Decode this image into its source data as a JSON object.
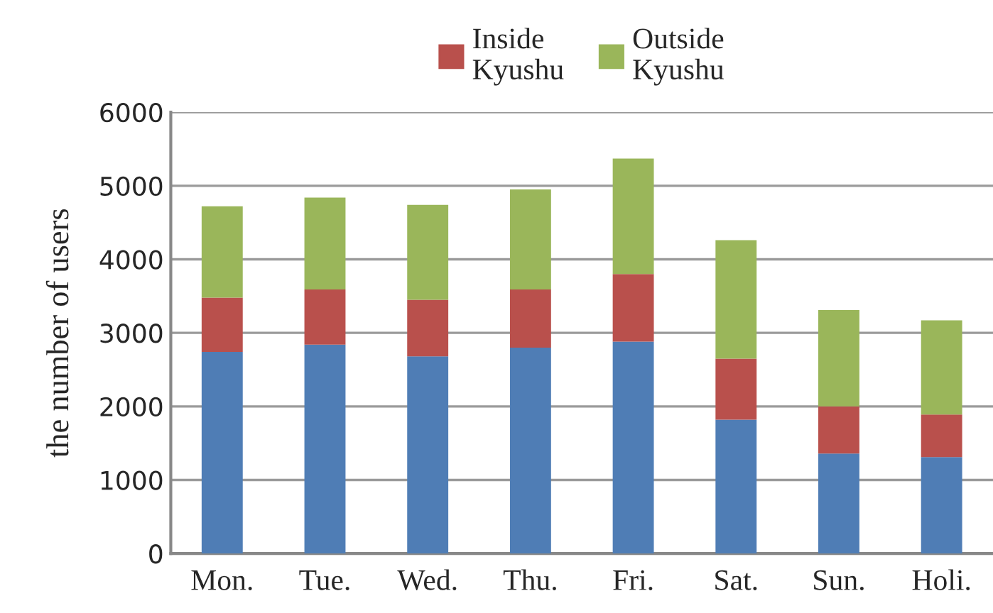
{
  "chart_data": {
    "type": "bar",
    "stacked": true,
    "ylabel": "the number of users",
    "categories": [
      "Mon.",
      "Tue.",
      "Wed.",
      "Thu.",
      "Fri.",
      "Sat.",
      "Sun.",
      "Holi."
    ],
    "series": [
      {
        "color": "#4f7db5",
        "values": [
          2740,
          2840,
          2680,
          2800,
          2880,
          1820,
          1360,
          1310
        ]
      },
      {
        "name": "Inside\nKyushu",
        "color": "#b9504c",
        "values": [
          740,
          750,
          770,
          790,
          920,
          830,
          640,
          580
        ]
      },
      {
        "name": "Outside\nKyushu",
        "color": "#9ab65a",
        "values": [
          1240,
          1250,
          1290,
          1360,
          1570,
          1610,
          1310,
          1280
        ]
      }
    ],
    "ylim": [
      0,
      6000
    ],
    "yticks": [
      0,
      1000,
      2000,
      3000,
      4000,
      5000,
      6000
    ],
    "grid": "y",
    "legend": "top"
  }
}
